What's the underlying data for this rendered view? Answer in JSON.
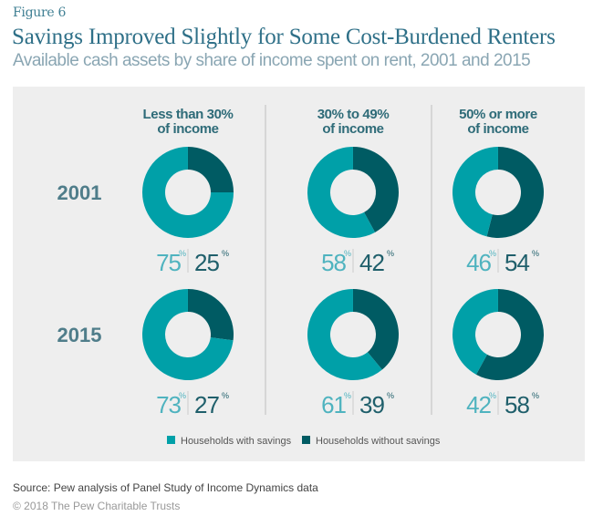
{
  "figure_label": "Figure 6",
  "title": "Savings Improved Slightly for Some Cost-Burdened Renters",
  "subtitle": "Available cash assets by share of income spent on rent, 2001 and 2015",
  "source": "Source: Pew analysis of Panel Study of Income Dynamics data",
  "copyright": "© 2018 The Pew Charitable Trusts",
  "colors": {
    "with_savings": "#00a0a8",
    "without_savings": "#005b63",
    "with_label": "#4fb3bf",
    "without_label": "#1f5f6b",
    "panel": "#eeeeee",
    "divider": "#d6d6d6"
  },
  "chart_data": {
    "type": "pie",
    "variant": "donut-grid",
    "title": "Savings Improved Slightly for Some Cost-Burdened Renters",
    "subtitle": "Available cash assets by share of income spent on rent, 2001 and 2015",
    "columns": [
      {
        "line1": "Less than 30%",
        "line2": "of income"
      },
      {
        "line1": "30% to 49%",
        "line2": "of income"
      },
      {
        "line1": "50% or more",
        "line2": "of income"
      }
    ],
    "rows": [
      "2001",
      "2015"
    ],
    "series": [
      {
        "name": "Households with savings",
        "values": [
          [
            75,
            58,
            46
          ],
          [
            73,
            61,
            42
          ]
        ]
      },
      {
        "name": "Households without savings",
        "values": [
          [
            25,
            42,
            54
          ],
          [
            27,
            39,
            58
          ]
        ]
      }
    ],
    "percent_symbol": "%",
    "legend": {
      "position": "bottom-center",
      "entries": [
        "Households with savings",
        "Households without savings"
      ]
    }
  }
}
